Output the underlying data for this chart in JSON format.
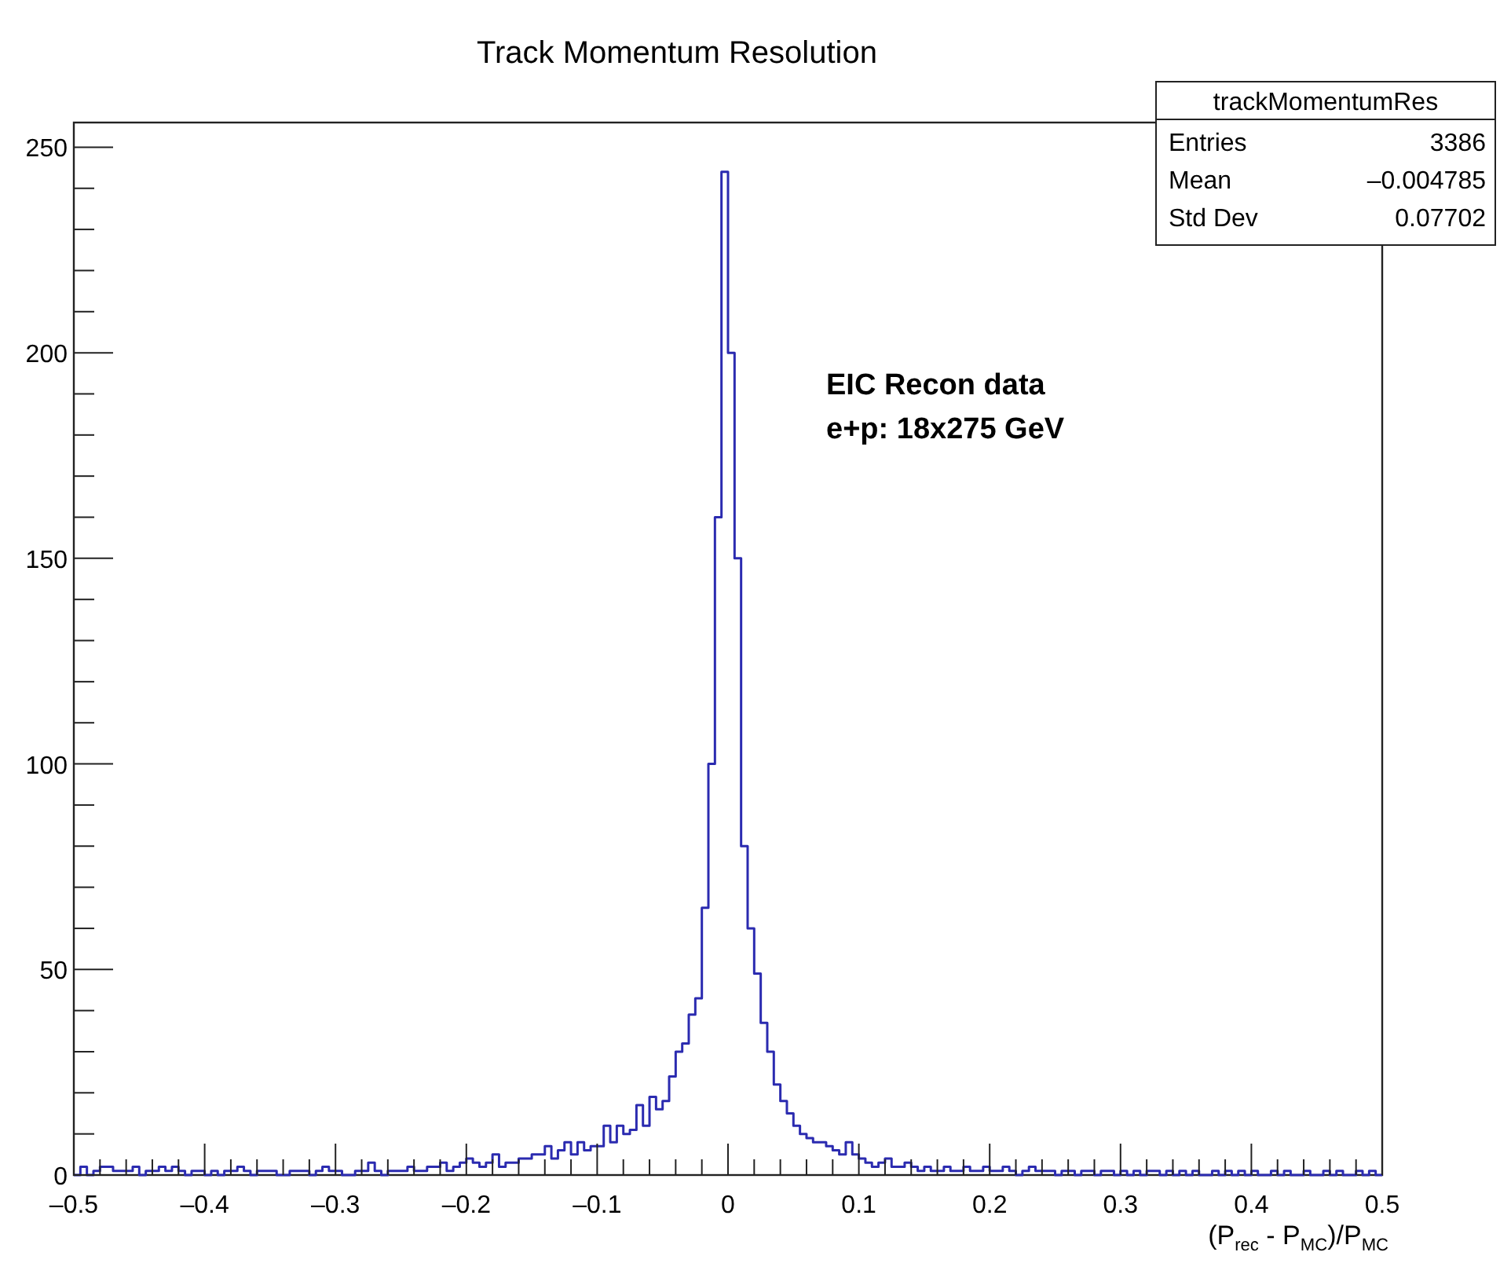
{
  "chart_data": {
    "type": "histogram",
    "title": "Track Momentum Resolution",
    "xlabel": "(P$_{rec}$ - P$_{MC}$)/P$_{MC}$",
    "color": "#2b2bb0",
    "bins": [
      -0.5,
      -0.495,
      -0.49,
      -0.485,
      -0.48,
      -0.475,
      -0.47,
      -0.465,
      -0.46,
      -0.455,
      -0.45,
      -0.445,
      -0.44,
      -0.435,
      -0.43,
      -0.425,
      -0.42,
      -0.415,
      -0.41,
      -0.405,
      -0.4,
      -0.395,
      -0.39,
      -0.385,
      -0.38,
      -0.375,
      -0.37,
      -0.365,
      -0.36,
      -0.355,
      -0.35,
      -0.345,
      -0.34,
      -0.335,
      -0.33,
      -0.325,
      -0.32,
      -0.315,
      -0.31,
      -0.305,
      -0.3,
      -0.295,
      -0.29,
      -0.285,
      -0.28,
      -0.275,
      -0.27,
      -0.265,
      -0.26,
      -0.255,
      -0.25,
      -0.245,
      -0.24,
      -0.235,
      -0.23,
      -0.225,
      -0.22,
      -0.215,
      -0.21,
      -0.205,
      -0.2,
      -0.195,
      -0.19,
      -0.185,
      -0.18,
      -0.175,
      -0.17,
      -0.165,
      -0.16,
      -0.155,
      -0.15,
      -0.145,
      -0.14,
      -0.135,
      -0.13,
      -0.125,
      -0.12,
      -0.115,
      -0.11,
      -0.105,
      -0.1,
      -0.095,
      -0.09,
      -0.085,
      -0.08,
      -0.075,
      -0.07,
      -0.065,
      -0.06,
      -0.055,
      -0.05,
      -0.045,
      -0.04,
      -0.035,
      -0.03,
      -0.025,
      -0.02,
      -0.015,
      -0.01,
      -0.005,
      0,
      0.005,
      0.01,
      0.015,
      0.02,
      0.025,
      0.03,
      0.035,
      0.04,
      0.045,
      0.05,
      0.055,
      0.06,
      0.065,
      0.07,
      0.075,
      0.08,
      0.085,
      0.09,
      0.095,
      0.1,
      0.105,
      0.11,
      0.115,
      0.12,
      0.125,
      0.13,
      0.135,
      0.14,
      0.145,
      0.15,
      0.155,
      0.16,
      0.165,
      0.17,
      0.175,
      0.18,
      0.185,
      0.19,
      0.195,
      0.2,
      0.205,
      0.21,
      0.215,
      0.22,
      0.225,
      0.23,
      0.235,
      0.24,
      0.245,
      0.25,
      0.255,
      0.26,
      0.265,
      0.27,
      0.275,
      0.28,
      0.285,
      0.29,
      0.295,
      0.3,
      0.305,
      0.31,
      0.315,
      0.32,
      0.325,
      0.33,
      0.335,
      0.34,
      0.345,
      0.35,
      0.355,
      0.36,
      0.365,
      0.37,
      0.375,
      0.38,
      0.385,
      0.39,
      0.395,
      0.4,
      0.405,
      0.41,
      0.415,
      0.42,
      0.425,
      0.43,
      0.435,
      0.44,
      0.445,
      0.45,
      0.455,
      0.46,
      0.465,
      0.47,
      0.475,
      0.48,
      0.485,
      0.49,
      0.495,
      0.5
    ],
    "values": [
      0,
      2,
      0,
      1,
      2,
      2,
      1,
      1,
      1,
      2,
      0,
      1,
      1,
      2,
      1,
      2,
      1,
      0,
      1,
      1,
      0,
      1,
      0,
      1,
      1,
      2,
      1,
      0,
      1,
      1,
      1,
      0,
      0,
      1,
      1,
      1,
      0,
      1,
      2,
      1,
      1,
      0,
      0,
      1,
      1,
      3,
      1,
      0,
      1,
      1,
      1,
      2,
      1,
      1,
      2,
      2,
      3,
      1,
      2,
      3,
      4,
      3,
      2,
      3,
      5,
      2,
      3,
      3,
      4,
      4,
      5,
      5,
      7,
      4,
      6,
      8,
      5,
      8,
      6,
      7,
      7,
      12,
      8,
      12,
      10,
      11,
      17,
      12,
      19,
      16,
      18,
      24,
      30,
      32,
      39,
      43,
      65,
      100,
      160,
      244,
      200,
      150,
      80,
      60,
      49,
      37,
      30,
      22,
      18,
      15,
      12,
      10,
      9,
      8,
      8,
      7,
      6,
      5,
      8,
      5,
      4,
      3,
      2,
      3,
      4,
      2,
      2,
      3,
      2,
      1,
      2,
      1,
      1,
      2,
      1,
      1,
      2,
      1,
      1,
      2,
      1,
      1,
      2,
      1,
      0,
      1,
      2,
      1,
      1,
      1,
      0,
      1,
      1,
      0,
      1,
      1,
      0,
      1,
      1,
      0,
      1,
      0,
      1,
      0,
      1,
      1,
      0,
      1,
      0,
      1,
      0,
      1,
      0,
      0,
      1,
      0,
      1,
      0,
      1,
      0,
      1,
      0,
      0,
      1,
      0,
      1,
      0,
      0,
      1,
      0,
      0,
      1,
      0,
      1,
      0,
      0,
      1,
      0,
      1,
      0
    ],
    "xlim": [
      -0.5,
      0.5
    ],
    "ylim": [
      0,
      256
    ],
    "xticks": [
      {
        "value": -0.5,
        "label": "–0.5"
      },
      {
        "value": -0.4,
        "label": "–0.4"
      },
      {
        "value": -0.3,
        "label": "–0.3"
      },
      {
        "value": -0.2,
        "label": "–0.2"
      },
      {
        "value": -0.1,
        "label": "–0.1"
      },
      0,
      0.1,
      0.2,
      0.3,
      0.4,
      0.5
    ],
    "yticks": [
      0,
      50,
      100,
      150,
      200,
      250
    ],
    "grid": false,
    "annotations": [
      "trackMomentumRes",
      "Entries 3386",
      "Mean –0.004785",
      "Std Dev 0.07702",
      "EIC Recon data",
      "e+p: 18x275 GeV"
    ]
  }
}
